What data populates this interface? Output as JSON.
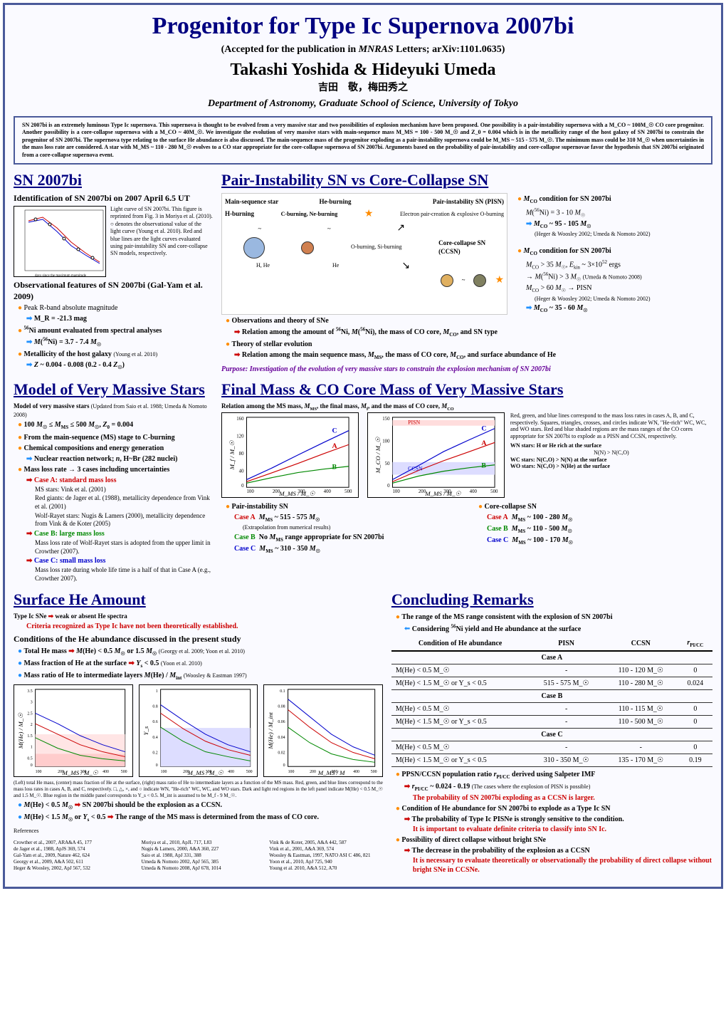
{
  "header": {
    "title": "Progenitor for Type Ic Supernova 2007bi",
    "subtitle": "(Accepted for the publication in MNRAS Letters; arXiv:1101.0635)",
    "authors": "Takashi Yoshida & Hideyuki Umeda",
    "authors_jp": "吉田　敬，梅田秀之",
    "dept": "Department of Astronomy, Graduate School of Science, University of Tokyo"
  },
  "abstract": "SN 2007bi is an extremely luminous Type Ic supernova. This supernova is thought to be evolved from a very massive star and two possibilities of explosion mechanism have been proposed. One possibility is a pair-instability supernova with a M_CO ~ 100M_☉ CO core progenitor. Another possibility is a core-collapse supernova with a M_CO ~ 40M_☉. We investigate the evolution of very massive stars with main-sequence mass M_MS = 100 - 500 M_☉ and Z_0 = 0.004 which is in the metallicity range of the host galaxy of SN 2007bi to constrain the progenitor of SN 2007bi. The supernova type relating to the surface He abundance is also discussed. The main-sequence mass of the progenitor exploding as a pair-instability supernova could be M_MS ~ 515 - 575 M_☉. The minimum mass could be 310 M_☉ when uncertainties in the mass loss rate are considered. A star with M_MS ~ 110 - 280 M_☉ evolves to a CO star appropriate for the core-collapse supernova of SN 2007bi. Arguments based on the probability of pair-instability and core-collapse supernovae favor the hypothesis that SN 2007bi originated from a core-collapse supernova event.",
  "sn2007bi": {
    "title": "SN 2007bi",
    "ident": "Identification of SN 2007bi on 2007 April 6.5 UT",
    "lc_caption": "Light curve of SN 2007bi. This figure is reprinted from Fig. 3 in Moriya et al. (2010). ○ denotes the observational value of the light curve (Young et al. 2010). Red and blue lines are the light curves evaluated using pair-instability SN and core-collapse SN models, respectively.",
    "obs_head": "Observational features of SN 2007bi (Gal-Yam et al. 2009)",
    "peak_r": "Peak R-band absolute magnitude",
    "peak_r_val": "M_R = -21.3 mag",
    "ni_head": "⁵⁶Ni amount evaluated from spectral analyses",
    "ni_val": "M(⁵⁶Ni) = 3.7 - 7.4 M_☉",
    "metal_head": "Metallicity of the host galaxy (Young et al. 2010)",
    "metal_val": "Z ~ 0.004 - 0.008  (0.2 - 0.4 Z_☉)",
    "lc_xlabel": "days since the maximum magnitude"
  },
  "pisn_ccsn": {
    "title": "Pair-Instability SN vs Core-Collapse SN",
    "diag": {
      "ms": "Main-sequence star",
      "he_burn": "He-burning",
      "h_burn": "H-burning",
      "cne_burn": "C-burning, Ne-burning",
      "pisn": "Pair-instability SN (PISN)",
      "pisn_sub": "Electron pair-creation & explosive O-burning",
      "osi": "O-burning, Si-burning",
      "ccsn": "Core-collapse SN (CCSN)",
      "h_he": "H, He",
      "he": "He",
      "osi_lbl": "O,Si",
      "onec_lbl": "O,Ne,C",
      "h_he_lbl": "H, He"
    },
    "cond_pisn_head": "M_CO condition for SN 2007bi",
    "cond_pisn_1": "M(⁵⁶Ni) = 3 - 10 M_☉",
    "cond_pisn_2": "M_CO ~ 95 - 105 M_☉",
    "cond_pisn_ref": "(Heger & Woosley 2002; Umeda & Nomoto 2002)",
    "cond_ccsn_head": "M_CO condition for SN 2007bi",
    "cond_ccsn_1": "M_CO > 35 M_☉, E_kin ~ 3×10⁵² ergs",
    "cond_ccsn_2": "→ M(⁵⁶Ni) > 3 M_☉ (Umeda & Nomoto 2008)",
    "cond_ccsn_3": "M_CO > 60 M_☉ → PISN",
    "cond_ccsn_3ref": "(Heger & Woosley 2002; Umeda & Nomoto 2002)",
    "cond_ccsn_4": "M_CO ~ 35 - 60 M_☉",
    "obs_theory": "Observations and theory of SNe",
    "rel1": "Relation among the amount of ⁵⁶Ni, M(⁵⁶Ni), the mass of CO core, M_CO, and SN type",
    "theory_evo": "Theory of stellar evolution",
    "rel2": "Relation among the main sequence mass, M_MS, the mass of CO core, M_CO, and surface abundance of He",
    "purpose": "Purpose: Investigation of the evolution of very massive stars to constrain the explosion mechanism of SN 2007bi"
  },
  "model": {
    "title": "Model of Very Massive Stars",
    "head": "Model of very massive stars (Updated from Saio et al. 1988; Umeda & Nomoto 2008)",
    "range": "100 M_☉ ≤ M_MS ≤ 500 M_☉, Z_0 = 0.004",
    "stage": "From the main-sequence (MS) stage to C-burning",
    "chem": "Chemical compositions and energy generation",
    "nuc": "Nuclear reaction network; n, H~Br (282 nuclei)",
    "mloss": "Mass loss rate → 3 cases including uncertainties",
    "caseA": "Case A: standard mass loss",
    "caseA_ms": "MS stars: Vink et al. (2001)",
    "caseA_rg": "Red giants: de Jager et al. (1988), metallicity dependence from Vink et al. (2001)",
    "caseA_wr": "Wolf-Rayet stars: Nugis & Lamers (2000), metallicity dependence from Vink & de Koter (2005)",
    "caseB": "Case B: large mass loss",
    "caseB_note": "Mass loss rate of Wolf-Rayet stars is adopted from the upper limit in Crowther (2007).",
    "caseC": "Case C: small mass loss",
    "caseC_note": "Mass loss rate during whole life time is a half of that in Case A (e.g., Crowther 2007)."
  },
  "finalmass": {
    "title": "Final Mass & CO Core Mass of Very Massive Stars",
    "head": "Relation among the MS mass, M_MS, the final mass, M_f, and the mass of CO core, M_CO",
    "chart_left": {
      "ylabel": "M_f / M_☉",
      "xlabel": "M_MS / M_☉",
      "ylim": [
        0,
        160
      ],
      "ytick_step": 40,
      "xlim": [
        100,
        500
      ],
      "xtick_step": 100,
      "annot_A": "A",
      "annot_B": "B",
      "annot_C": "C"
    },
    "chart_right": {
      "ylabel": "M_CO / M_☉",
      "xlabel": "M_MS / M_☉",
      "ylim": [
        0,
        150
      ],
      "ytick_step": 50,
      "xlim": [
        100,
        500
      ],
      "xtick_step": 100,
      "annot_A": "A",
      "annot_B": "B",
      "annot_C": "C",
      "pisn_lbl": "PISN",
      "ccsn_lbl": "CCSN"
    },
    "side_note": "Red, green, and blue lines correspond to the mass loss rates in cases A, B, and C, respectively. Squares, triangles, crosses, and circles indicate WN, \"He-rich\" WC, WC, and WO stars. Red and blue shaded regions are the mass ranges of the CO cores appropriate for SN 2007bi to explode as a PISN and CCSN, respectively.",
    "wn": "WN stars: H or He rich at the surface",
    "wn_cond": "N(N) > N(C,O)",
    "wc": "WC stars: N(C,O) > N(N)  at the surface",
    "wo": "WO stars: N(C,O) > N(He)  at the surface",
    "pisn_head": "Pair-instability SN",
    "pisn_A": "Case A   M_MS ~ 515 - 575 M_☉",
    "pisn_A_note": "(Extrapolation from numerical results)",
    "pisn_B": "Case B   No M_MS range appropriate for SN 2007bi",
    "pisn_C": "Case C   M_MS ~ 310 - 350 M_☉",
    "ccsn_head": "Core-collapse SN",
    "ccsn_A": "Case A   M_MS ~ 100 - 280 M_☉",
    "ccsn_B": "Case B   M_MS ~ 110 - 500 M_☉",
    "ccsn_C": "Case C   M_MS ~ 100 - 170 M_☉"
  },
  "surface_he": {
    "title": "Surface He Amount",
    "typeic": "Type Ic SNe",
    "typeic_arrow": "weak or absent He spectra",
    "criteria": "Criteria recognized as Type Ic have not been theoretically established.",
    "cond_head": "Conditions of the He abundance discussed in the present study",
    "cond1": "Total He mass",
    "cond1_val": "M(He) < 0.5 M_☉ or 1.5 M_☉ (Georgy et al. 2009; Yoon et al. 2010)",
    "cond2": "Mass fraction of He at the surface",
    "cond2_val": "Y_s < 0.5 (Yoon et al. 2010)",
    "cond3": "Mass ratio of He to intermediate layers M(He) / M_int (Woosley & Eastman 1997)",
    "charts": {
      "c1_ylabel": "M(He) / M_☉",
      "c2_ylabel": "Y_s",
      "c3_ylabel": "M(He) / M_int",
      "xlabel": "M_MS / M_☉",
      "xlim": [
        100,
        500
      ],
      "xtick_step": 100,
      "c1_ylim": [
        0,
        3.5
      ],
      "c1_ytick": 0.5,
      "c2_ylim": [
        0,
        1
      ],
      "c2_ytick": 0.2,
      "c3_ylim": [
        0,
        0.1
      ],
      "c3_ytick": 0.02,
      "c3_xlabel": "M_MS / M"
    },
    "caption": "(Left) total He mass, (center) mass fraction of He at the surface, (right) mass ratio of He to intermediate layers as a function of the MS mass. Red, green, and blue lines correspond to the mass loss rates in cases A, B, and C, respectively. □, △, ×, and ○ indicate WN, \"He-rich\" WC, WC, and WO stars. Dark and light red regions in the left panel indicate M(He) < 0.5 M_☉ and 1.5 M_☉. Blue region in the middle panel corresponds to Y_s < 0.5. M_int is assumed to be M_f - 9 M_☉.",
    "concl1_a": "M(He) < 0.5 M_☉",
    "concl1_b": "SN 2007bi should be the explosion as a CCSN.",
    "concl2_a": "M(He) < 1.5 M_☉ or Y_s < 0.5",
    "concl2_b": "The range of the MS mass is determined from the mass of CO core."
  },
  "concluding": {
    "title": "Concluding Remarks",
    "c1": "The range of the MS range consistent with the explosion of SN 2007bi",
    "c1_sub": "Considering ⁵⁶Ni yield and He abundance at the surface",
    "table": {
      "headers": [
        "Condition of He abundance",
        "PISN",
        "CCSN",
        "r_PI/CC"
      ],
      "rows": [
        {
          "section": "Case A"
        },
        {
          "cells": [
            "M(He) < 0.5 M_☉",
            "-",
            "110 - 120 M_☉",
            "0"
          ]
        },
        {
          "cells": [
            "M(He) < 1.5 M_☉ or Y_s < 0.5",
            "515 - 575 M_☉",
            "110 - 280 M_☉",
            "0.024"
          ]
        },
        {
          "section": "Case B"
        },
        {
          "cells": [
            "M(He) < 0.5 M_☉",
            "-",
            "110 - 115 M_☉",
            "0"
          ]
        },
        {
          "cells": [
            "M(He) < 1.5 M_☉ or Y_s < 0.5",
            "-",
            "110 - 500 M_☉",
            "0"
          ]
        },
        {
          "section": "Case C"
        },
        {
          "cells": [
            "M(He) < 0.5 M_☉",
            "-",
            "-",
            "0"
          ]
        },
        {
          "cells": [
            "M(He) < 1.5 M_☉ or Y_s < 0.5",
            "310 - 350 M_☉",
            "135 - 170 M_☉",
            "0.19"
          ]
        }
      ]
    },
    "c2": "PPSN/CCSN population ratio r_PI/CC derived using Salpeter IMF",
    "c2_sub": "r_PI/CC ~ 0.024 - 0.19 (The cases where the explosion of PISN is possible)",
    "c2_concl": "The probability of SN 2007bi exploding as a CCSN is larger.",
    "c3": "Condition of He abundance for SN 2007bi to explode as a Type Ic SN",
    "c3_sub": "The probability of Type Ic PISNe is strongly sensitive to the condition.",
    "c3_concl": "It is important to evaluate definite criteria to classify into SN Ic.",
    "c4": "Possibility of direct collapse without bright SNe",
    "c4_sub": "The decrease in the probability of the explosion as a CCSN",
    "c4_concl": "It is necessary to evaluate theoretically or observationally the probability of direct collapse without bright SNe in CCSNe."
  },
  "refs": {
    "title": "References",
    "items": [
      "Crowther et al., 2007, ARA&A 45, 177",
      "de Jager et al., 1988, ApJS 369, 574",
      "Gal-Yam et al., 2009, Nature 462, 624",
      "Georgy et al., 2009, A&A 502, 611",
      "Heger & Woosley, 2002, ApJ 567, 532",
      "Moriya et al., 2010, ApJL 717, L83",
      "Nugis & Lamers, 2000, A&A 360, 227",
      "Saio et al. 1988, ApJ 331, 388",
      "Umeda & Nomoto 2002, ApJ 565, 385",
      "Umeda & Nomoto 2008, ApJ 678, 1014",
      "Vink & de Koter, 2005, A&A 442, 587",
      "Vink et al., 2001, A&A 369, 574",
      "Woosley & Eastman, 1997, NATO ASI C 486, 821",
      "Yoon et al., 2010, ApJ 725, 940",
      "Young et al. 2010, A&A 512, A70"
    ]
  },
  "colors": {
    "border": "#4a5a9a",
    "heading": "#000080",
    "red": "#cc0000",
    "green": "#008800",
    "blue": "#0000cc",
    "purple": "#660099",
    "orange_bullet": "#ff8c00"
  }
}
